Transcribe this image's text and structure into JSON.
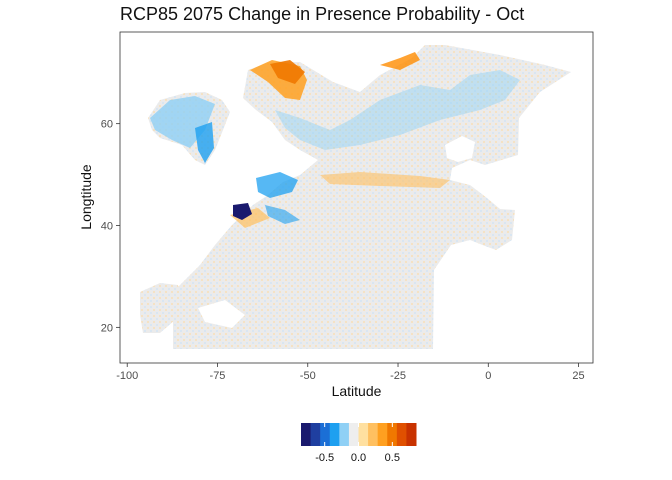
{
  "title": "RCP85 2075 Change in Presence Probability - Oct",
  "xlabel": "Latitude",
  "ylabel": "Longtitude",
  "x_axis": {
    "range": [
      -102,
      29
    ],
    "ticks": [
      -100,
      -75,
      -50,
      -25,
      0,
      25
    ],
    "tick_labels": [
      "-100",
      "-75",
      "-50",
      "-25",
      "0",
      "25"
    ]
  },
  "y_axis": {
    "range": [
      13,
      78
    ],
    "ticks": [
      20,
      40,
      60
    ],
    "tick_labels": [
      "20",
      "40",
      "60"
    ]
  },
  "legend": {
    "placement": "bottom",
    "colors": [
      "#1a1a6e",
      "#1f3fa0",
      "#1b6fd6",
      "#1ea0f0",
      "#8fd0f5",
      "#eeeeee",
      "#ffe0a0",
      "#ffc060",
      "#ffa020",
      "#f07800",
      "#e05000",
      "#c83200"
    ],
    "range": [
      -0.85,
      0.85
    ],
    "ticks": [
      -0.5,
      0.0,
      0.5
    ],
    "tick_labels": [
      "-0.5",
      "0.0",
      "0.5"
    ]
  },
  "colors": {
    "background": "#eeeeee",
    "negative_strong": "#1a1a6e",
    "negative": "#1ea0f0",
    "positive": "#ffa020",
    "positive_strong": "#f07800"
  }
}
